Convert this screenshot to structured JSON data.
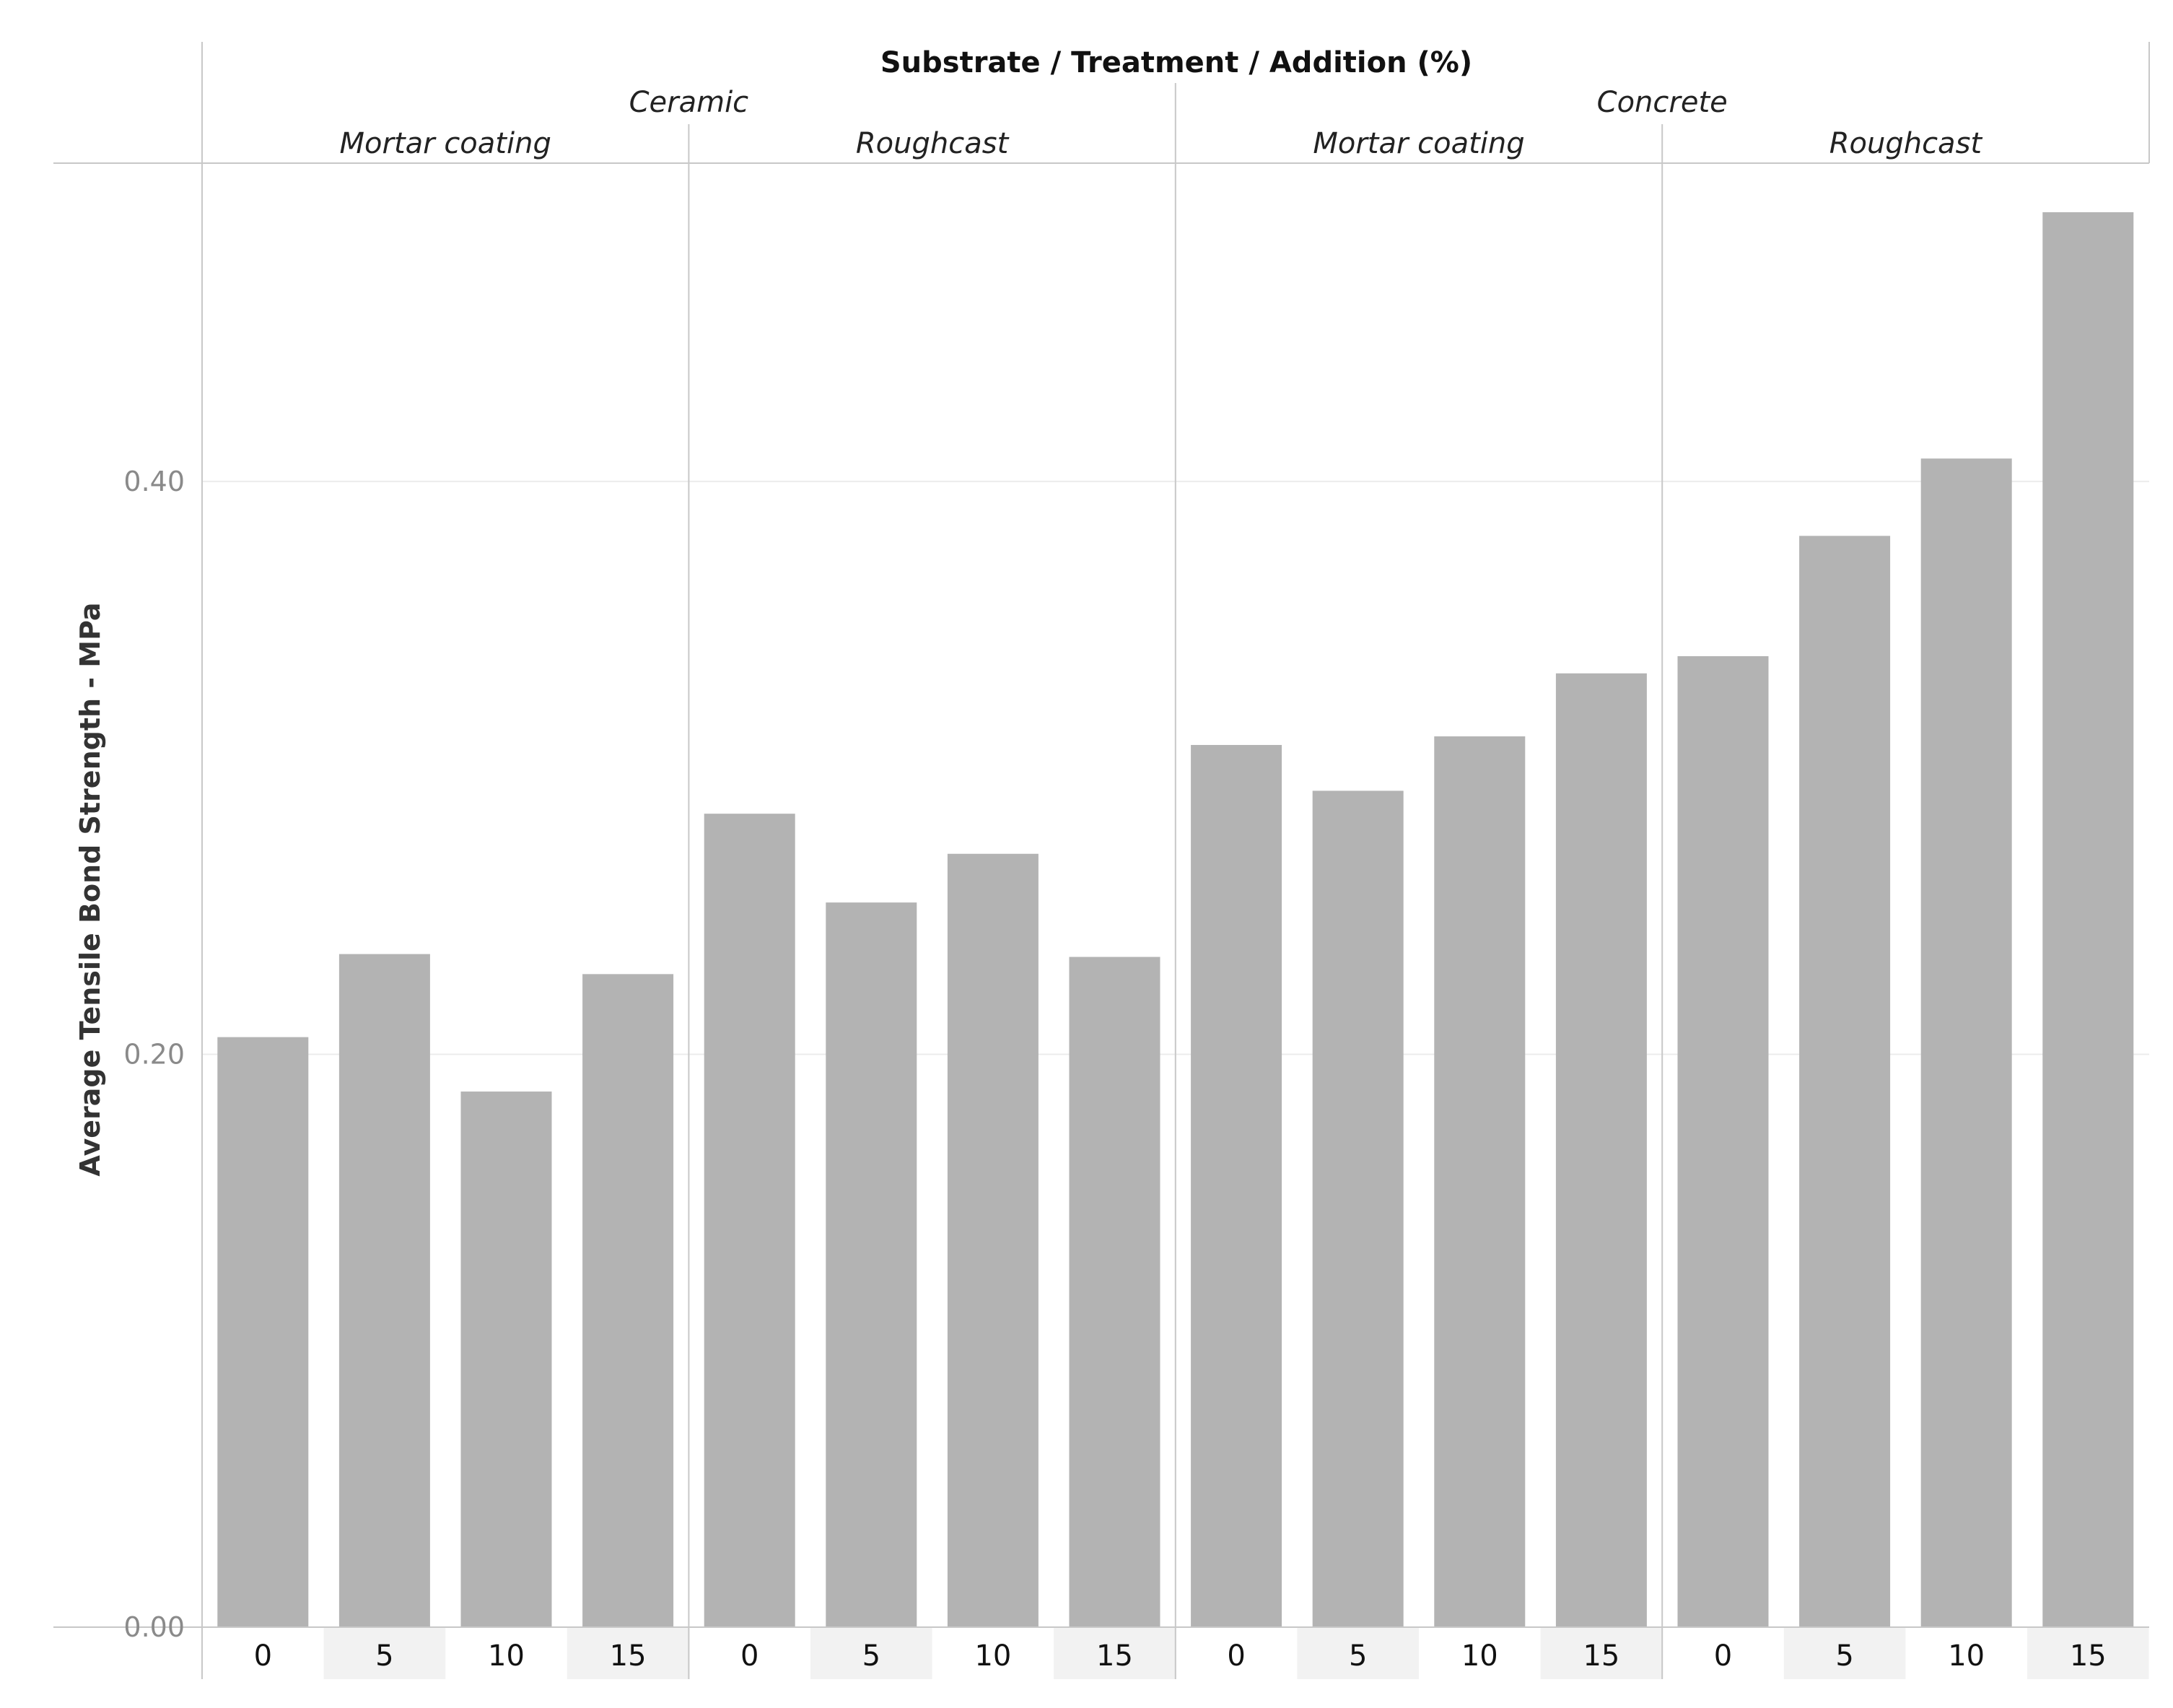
{
  "chart_data": {
    "type": "bar",
    "title": "Substrate / Treatment / Addition (%)",
    "ylabel": "Average Tensile Bond Strength - MPa",
    "xlabel": "",
    "ylim": [
      0,
      0.495
    ],
    "yticks": [
      0.0,
      0.2,
      0.4
    ],
    "ytick_labels": [
      "0.00",
      "0.20",
      "0.40"
    ],
    "grid": true,
    "bar_color": "#b3b3b3",
    "substrates": [
      {
        "name": "Ceramic",
        "treatments": [
          {
            "name": "Mortar coating",
            "categories": [
              "0",
              "5",
              "10",
              "15"
            ],
            "values": [
              0.206,
              0.235,
              0.187,
              0.228
            ]
          },
          {
            "name": "Roughcast",
            "categories": [
              "0",
              "5",
              "10",
              "15"
            ],
            "values": [
              0.284,
              0.253,
              0.27,
              0.234
            ]
          }
        ]
      },
      {
        "name": "Concrete",
        "treatments": [
          {
            "name": "Mortar coating",
            "categories": [
              "0",
              "5",
              "10",
              "15"
            ],
            "values": [
              0.308,
              0.292,
              0.311,
              0.333
            ]
          },
          {
            "name": "Roughcast",
            "categories": [
              "0",
              "5",
              "10",
              "15"
            ],
            "values": [
              0.339,
              0.381,
              0.408,
              0.494
            ]
          }
        ]
      }
    ]
  }
}
